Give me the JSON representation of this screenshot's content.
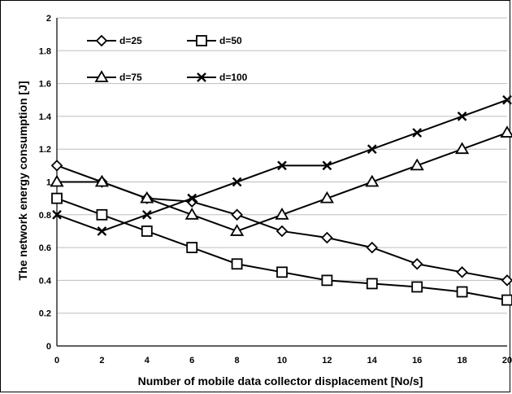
{
  "chart_data": {
    "type": "line",
    "title": "",
    "xlabel": "Number of mobile data collector displacement [No/s]",
    "ylabel": "The network energy consumption [J]",
    "x": [
      0,
      2,
      4,
      6,
      8,
      10,
      12,
      14,
      16,
      18,
      20
    ],
    "xlim": [
      0,
      20
    ],
    "ylim": [
      0,
      2
    ],
    "x_ticks": [
      "0",
      "2",
      "4",
      "6",
      "8",
      "10",
      "12",
      "14",
      "16",
      "18",
      "20"
    ],
    "y_ticks": [
      "0",
      "0.2",
      "0.4",
      "0.6",
      "0.8",
      "1",
      "1.2",
      "1.4",
      "1.6",
      "1.8",
      "2"
    ],
    "grid": "horizontal",
    "legend_position": "top-left",
    "series": [
      {
        "name": "d=25",
        "marker": "diamond",
        "values": [
          1.1,
          1.0,
          0.9,
          0.88,
          0.8,
          0.7,
          0.66,
          0.6,
          0.5,
          0.45,
          0.4
        ]
      },
      {
        "name": "d=50",
        "marker": "square",
        "values": [
          0.9,
          0.8,
          0.7,
          0.6,
          0.5,
          0.45,
          0.4,
          0.38,
          0.36,
          0.33,
          0.28
        ]
      },
      {
        "name": "d=75",
        "marker": "triangle",
        "values": [
          1.0,
          1.0,
          0.9,
          0.8,
          0.7,
          0.8,
          0.9,
          1.0,
          1.1,
          1.2,
          1.3
        ]
      },
      {
        "name": "d=100",
        "marker": "x",
        "values": [
          0.8,
          0.7,
          0.8,
          0.9,
          1.0,
          1.1,
          1.1,
          1.2,
          1.3,
          1.4,
          1.5
        ]
      }
    ]
  }
}
